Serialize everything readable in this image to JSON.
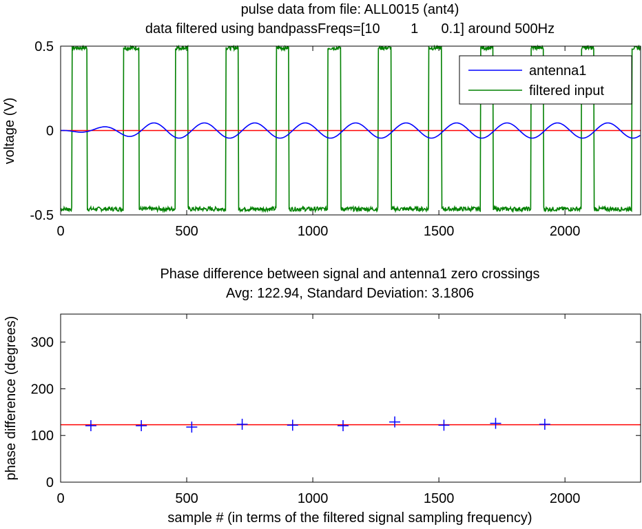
{
  "chart_data": [
    {
      "type": "line",
      "title": "pulse data from file: ALL0015 (ant4)",
      "subtitle": "data filtered using bandpassFreqs=[10        1      0.1] around 500Hz",
      "xlabel": "",
      "ylabel": "voltage (V)",
      "xlim": [
        0,
        2300
      ],
      "ylim": [
        -0.5,
        0.5
      ],
      "xticks": [
        0,
        500,
        1000,
        1500,
        2000
      ],
      "yticks": [
        -0.5,
        0,
        0.5
      ],
      "ytick_labels": [
        "-0.5",
        "0",
        "0.5"
      ],
      "legend_position": "top-right",
      "series": [
        {
          "name": "antenna1",
          "color": "#0000ff",
          "kind": "damped-sine",
          "amplitude": 0.045,
          "period_samples": 200,
          "start": 0,
          "end": 2300
        },
        {
          "name": "filtered input",
          "color": "#008000",
          "kind": "square-pulses",
          "high": 0.49,
          "low": -0.465,
          "high_intervals": [
            [
              45,
              105
            ],
            [
              250,
              310
            ],
            [
              455,
              505
            ],
            [
              655,
              705
            ],
            [
              855,
              905
            ],
            [
              1060,
              1110
            ],
            [
              1260,
              1310
            ],
            [
              1460,
              1510
            ],
            [
              1665,
              1715
            ],
            [
              1865,
              1915
            ],
            [
              2065,
              2115
            ],
            [
              2265,
              2300
            ]
          ]
        },
        {
          "name": "",
          "color": "#ff0000",
          "kind": "constant",
          "value": 0
        }
      ]
    },
    {
      "type": "scatter",
      "title": "Phase difference between signal and antenna1 zero crossings",
      "subtitle": "Avg: 122.94, Standard Deviation: 3.1806",
      "xlabel": "sample # (in terms of the filtered signal sampling frequency)",
      "ylabel": "phase difference (degrees)",
      "xlim": [
        0,
        2300
      ],
      "ylim": [
        0,
        360
      ],
      "xticks": [
        0,
        500,
        1000,
        1500,
        2000
      ],
      "yticks": [
        0,
        100,
        200,
        300
      ],
      "marker": "+",
      "marker_color": "#0000ff",
      "points": {
        "x": [
          120,
          320,
          520,
          720,
          920,
          1120,
          1325,
          1520,
          1725,
          1920
        ],
        "y": [
          121,
          121,
          118,
          124,
          122,
          121,
          129,
          122,
          126,
          124
        ]
      },
      "avg_line": {
        "value": 122.94,
        "color": "#ff0000"
      }
    }
  ]
}
